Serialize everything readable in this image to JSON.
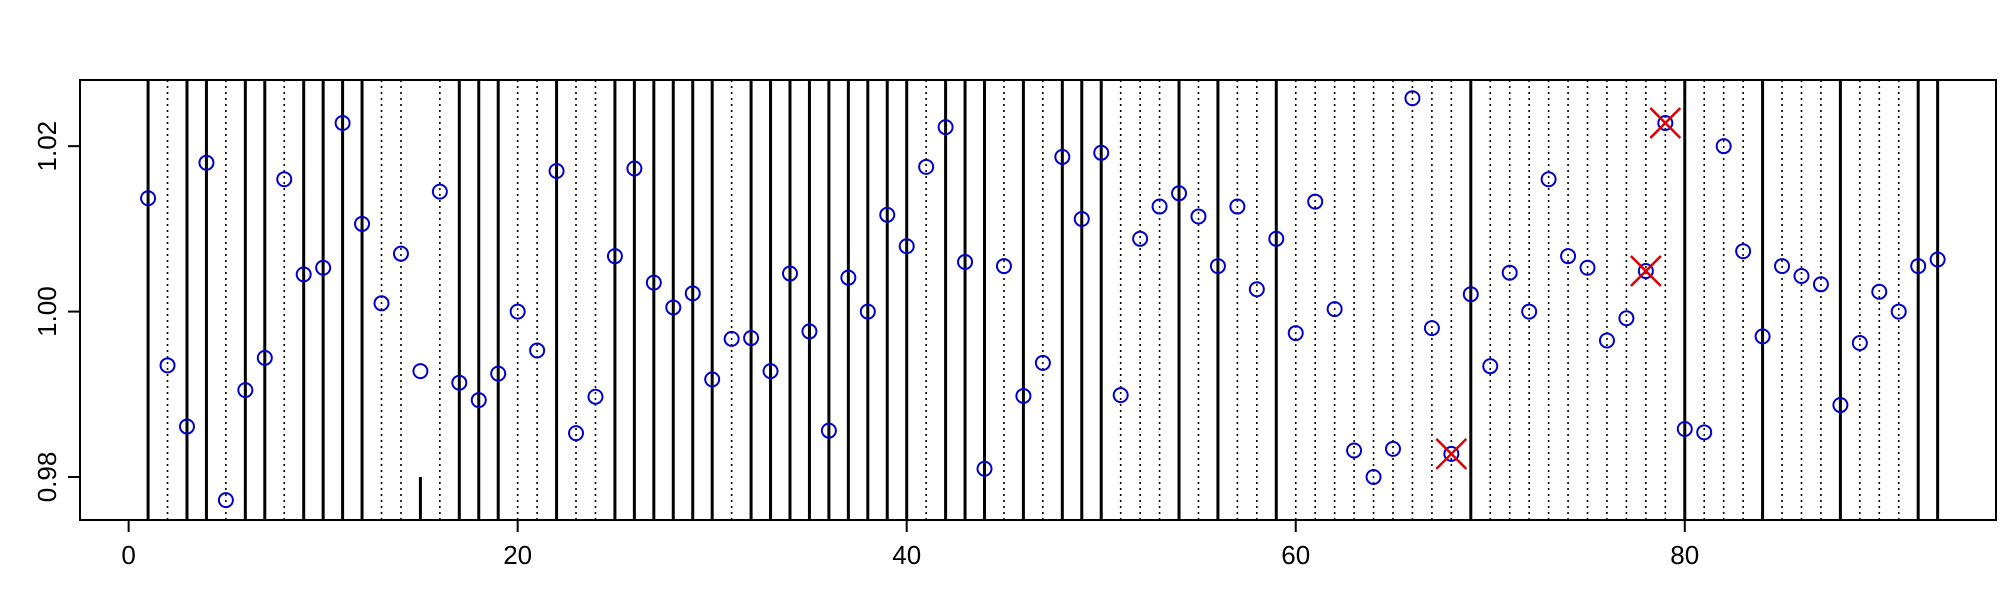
{
  "chart_data": {
    "type": "scatter",
    "title": "",
    "xlabel": "",
    "ylabel": "",
    "xlim": [
      -2.5,
      96
    ],
    "ylim": [
      0.9748,
      1.028
    ],
    "grid": false,
    "legend": "none",
    "x_ticks": [
      0,
      20,
      40,
      60,
      80
    ],
    "x_tick_labels": [
      "0",
      "20",
      "40",
      "60",
      "80"
    ],
    "y_ticks": [
      0.98,
      1.0,
      1.02
    ],
    "y_tick_labels": [
      "0.98",
      "1.00",
      "1.02"
    ],
    "colors": {
      "points": "#0000cc",
      "flagged": "#dd0000",
      "solid_lines": "#000000",
      "dotted_lines": "#000000"
    },
    "series": [
      {
        "marker": "open-circle",
        "points": [
          [
            1,
            1.0137
          ],
          [
            2,
            0.9935
          ],
          [
            3,
            0.9861
          ],
          [
            4,
            1.018
          ],
          [
            5,
            0.9772
          ],
          [
            6,
            0.9905
          ],
          [
            7,
            0.9944
          ],
          [
            8,
            1.016
          ],
          [
            9,
            1.0045
          ],
          [
            10,
            1.0053
          ],
          [
            11,
            1.0228
          ],
          [
            12,
            1.0106
          ],
          [
            13,
            1.001
          ],
          [
            14,
            1.007
          ],
          [
            15,
            0.9928
          ],
          [
            16,
            1.0145
          ],
          [
            17,
            0.9914
          ],
          [
            18,
            0.9893
          ],
          [
            19,
            0.9925
          ],
          [
            20,
            1.0
          ],
          [
            21,
            0.9953
          ],
          [
            22,
            1.017
          ],
          [
            23,
            0.9853
          ],
          [
            24,
            0.9897
          ],
          [
            25,
            1.0067
          ],
          [
            26,
            1.0173
          ],
          [
            27,
            1.0035
          ],
          [
            28,
            1.0005
          ],
          [
            29,
            1.0022
          ],
          [
            30,
            0.9918
          ],
          [
            31,
            0.9967
          ],
          [
            32,
            0.9968
          ],
          [
            33,
            0.9928
          ],
          [
            34,
            1.0046
          ],
          [
            35,
            0.9976
          ],
          [
            36,
            0.9856
          ],
          [
            37,
            1.0041
          ],
          [
            38,
            1.0
          ],
          [
            39,
            1.0117
          ],
          [
            40,
            1.0079
          ],
          [
            41,
            1.0175
          ],
          [
            42,
            1.0223
          ],
          [
            43,
            1.006
          ],
          [
            44,
            0.981
          ],
          [
            45,
            1.0055
          ],
          [
            46,
            0.9898
          ],
          [
            47,
            0.9938
          ],
          [
            48,
            1.0187
          ],
          [
            49,
            1.0112
          ],
          [
            50,
            1.0192
          ],
          [
            51,
            0.9899
          ],
          [
            52,
            1.0088
          ],
          [
            53,
            1.0127
          ],
          [
            54,
            1.0143
          ],
          [
            55,
            1.0115
          ],
          [
            56,
            1.0055
          ],
          [
            57,
            1.0127
          ],
          [
            58,
            1.0027
          ],
          [
            59,
            1.0088
          ],
          [
            60,
            0.9974
          ],
          [
            61,
            1.0133
          ],
          [
            62,
            1.0003
          ],
          [
            63,
            0.9832
          ],
          [
            64,
            0.98
          ],
          [
            65,
            0.9834
          ],
          [
            66,
            1.0258
          ],
          [
            67,
            0.998
          ],
          [
            68,
            0.9828
          ],
          [
            69,
            1.0021
          ],
          [
            70,
            0.9934
          ],
          [
            71,
            1.0047
          ],
          [
            72,
            1.0
          ],
          [
            73,
            1.016
          ],
          [
            74,
            1.0067
          ],
          [
            75,
            1.0053
          ],
          [
            76,
            0.9965
          ],
          [
            77,
            0.9992
          ],
          [
            78,
            1.0049
          ],
          [
            79,
            1.0228
          ],
          [
            80,
            0.9858
          ],
          [
            81,
            0.9854
          ],
          [
            82,
            1.02
          ],
          [
            83,
            1.0073
          ],
          [
            84,
            0.997
          ],
          [
            85,
            1.0055
          ],
          [
            86,
            1.0043
          ],
          [
            87,
            1.0033
          ],
          [
            88,
            0.9887
          ],
          [
            89,
            0.9962
          ],
          [
            90,
            1.0024
          ],
          [
            91,
            1.0
          ],
          [
            92,
            1.0055
          ],
          [
            93,
            1.0063
          ]
        ]
      },
      {
        "marker": "x",
        "points": [
          [
            68,
            0.9828
          ],
          [
            78,
            1.0049
          ],
          [
            79,
            1.0228
          ]
        ]
      }
    ],
    "solid_vlines": [
      1,
      3,
      4,
      6,
      7,
      9,
      10,
      11,
      12,
      17,
      18,
      19,
      22,
      25,
      26,
      27,
      28,
      29,
      30,
      32,
      33,
      34,
      35,
      36,
      37,
      38,
      39,
      40,
      42,
      43,
      44,
      46,
      48,
      49,
      50,
      54,
      56,
      59,
      69,
      80,
      84,
      88,
      92,
      93
    ],
    "dotted_vlines": [
      2,
      5,
      8,
      13,
      14,
      16,
      20,
      21,
      23,
      24,
      31,
      41,
      45,
      47,
      51,
      52,
      53,
      55,
      57,
      58,
      60,
      61,
      62,
      63,
      64,
      65,
      66,
      67,
      68,
      70,
      71,
      72,
      73,
      74,
      75,
      76,
      77,
      78,
      79,
      81,
      82,
      83,
      85,
      86,
      87,
      89,
      90,
      91
    ],
    "partial_vlines": [
      {
        "x": 15,
        "y_top": 0.98
      }
    ]
  }
}
